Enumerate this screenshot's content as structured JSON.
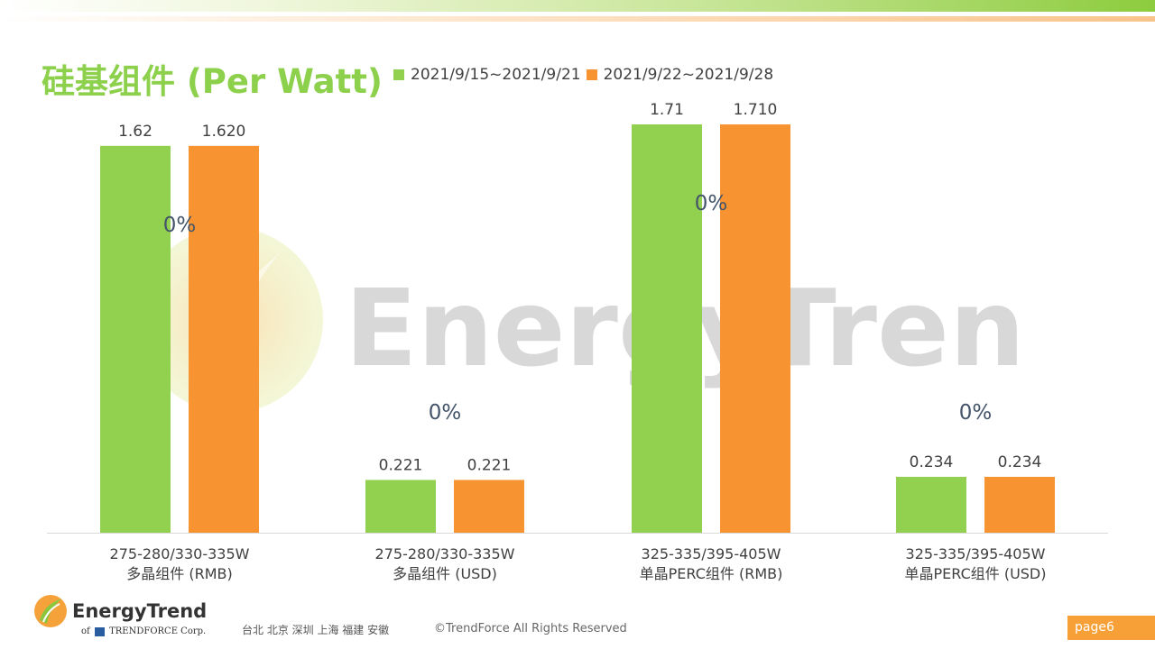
{
  "title": "硅基组件 (Per Watt)",
  "colors": {
    "series1": "#92d050",
    "series2": "#f79431",
    "title": "#8dd04c",
    "page_badge": "#f7a038"
  },
  "chart_data": {
    "type": "bar",
    "categories": [
      [
        "275-280/330-335W",
        "多晶组件 (RMB)"
      ],
      [
        "275-280/330-335W",
        "多晶组件 (USD)"
      ],
      [
        "325-335/395-405W",
        "单晶PERC组件 (RMB)"
      ],
      [
        "325-335/395-405W",
        "单晶PERC组件 (USD)"
      ]
    ],
    "series": [
      {
        "name": "2021/9/15~2021/9/21",
        "values": [
          1.62,
          0.221,
          1.71,
          0.234
        ],
        "labels": [
          "1.62",
          "0.221",
          "1.71",
          "0.234"
        ]
      },
      {
        "name": "2021/9/22~2021/9/28",
        "values": [
          1.62,
          0.221,
          1.71,
          0.234
        ],
        "labels": [
          "1.620",
          "0.221",
          "1.710",
          "0.234"
        ]
      }
    ],
    "change_labels": [
      "0%",
      "0%",
      "0%",
      "0%"
    ],
    "ylim": [
      0,
      1.71
    ],
    "grid": false,
    "legend": "top"
  },
  "watermark": "EnergyTrend",
  "footer": {
    "logo_name": "EnergyTrend",
    "logo_of": "of",
    "logo_sub": "TRENDFORCE Corp.",
    "cities": "台北  北京  深圳  上海  福建  安徽",
    "copyright": "©TrendForce All Rights Reserved",
    "page": "page6"
  }
}
